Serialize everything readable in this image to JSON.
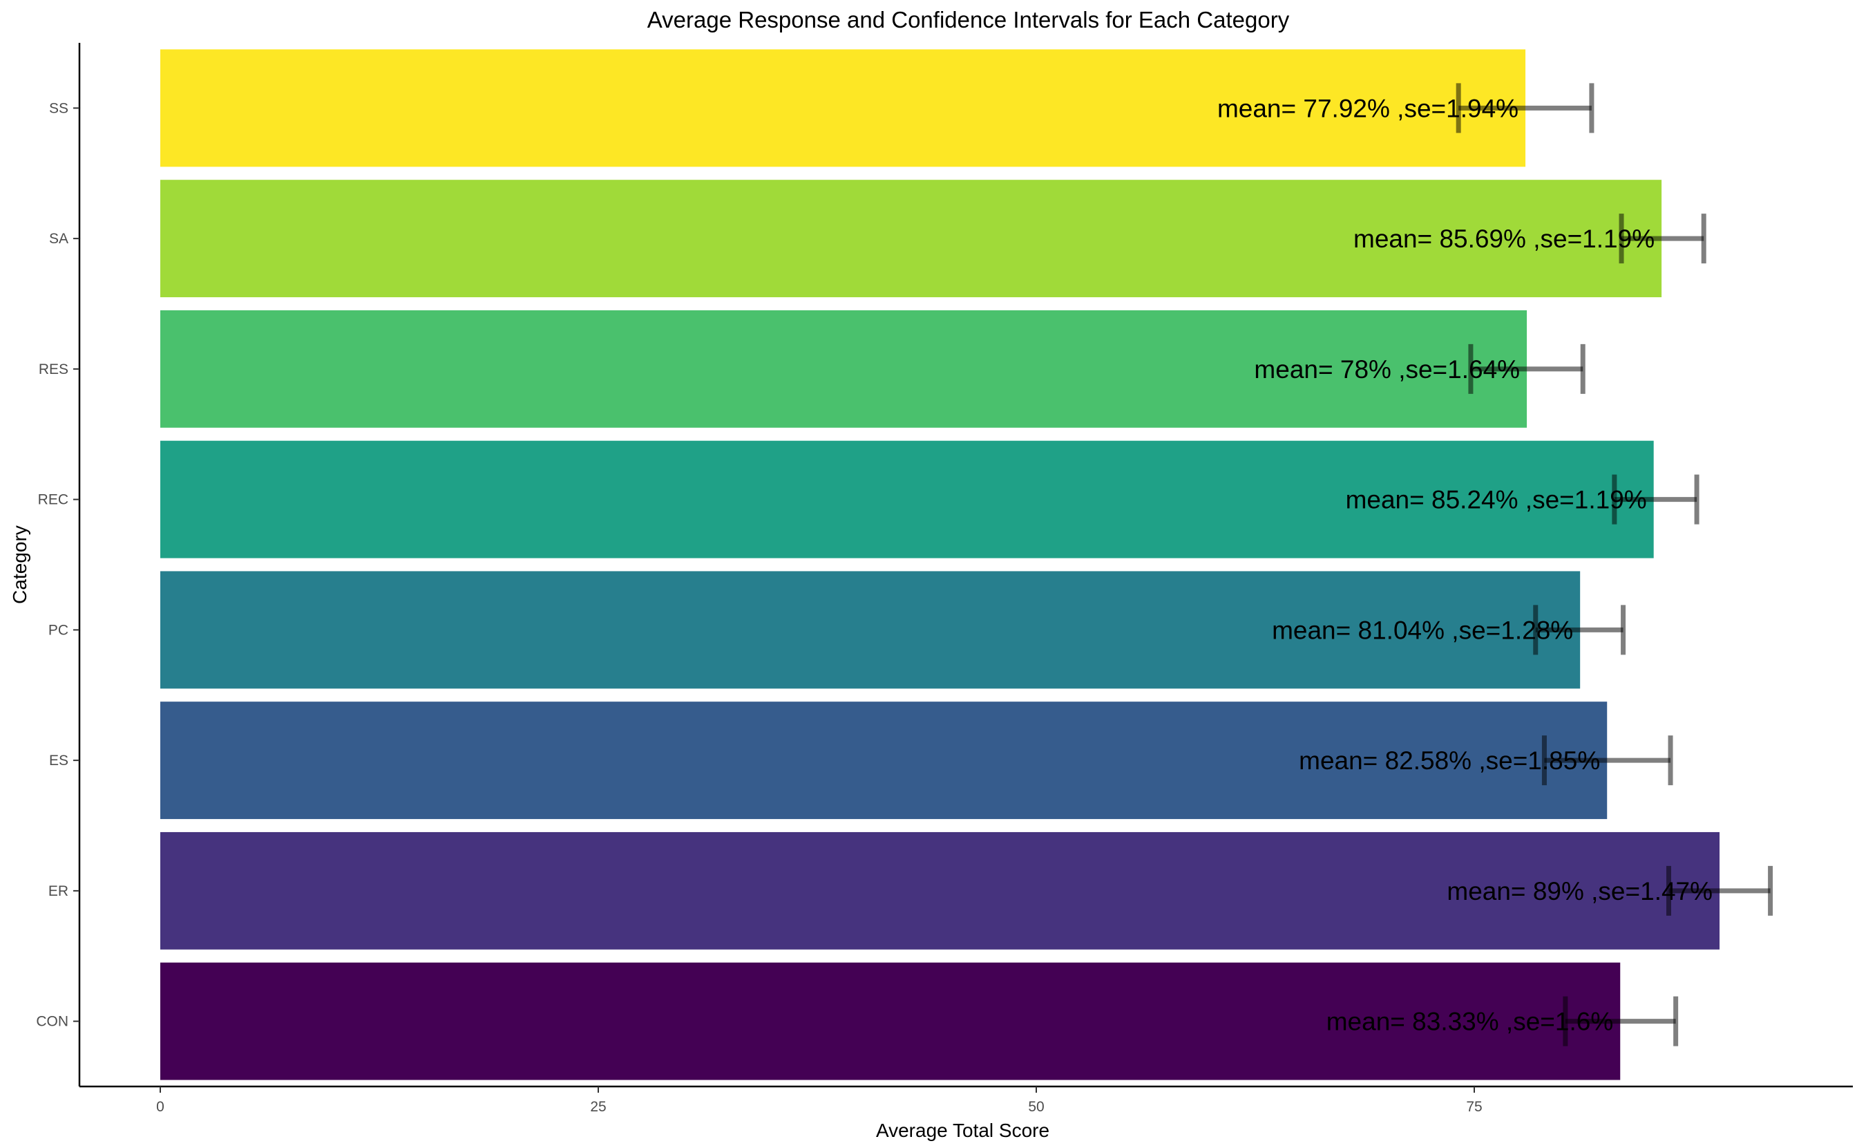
{
  "chart_data": {
    "type": "bar",
    "orientation": "horizontal",
    "title": "Average Response and Confidence Intervals for Each Category",
    "xlabel": "Average Total Score",
    "ylabel": "Category",
    "xlim": [
      -4.6,
      96.6
    ],
    "xticks": [
      0,
      25,
      50,
      75
    ],
    "grid": false,
    "legend": "none",
    "categories": [
      "CON",
      "ER",
      "ES",
      "PC",
      "REC",
      "RES",
      "SA",
      "SS"
    ],
    "values": [
      83.33,
      89,
      82.58,
      81.04,
      85.24,
      78,
      85.69,
      77.92
    ],
    "error_low": [
      80.2,
      86.1,
      79,
      78.5,
      83,
      74.8,
      83.4,
      74.1
    ],
    "error_high": [
      86.5,
      91.9,
      86.2,
      83.5,
      87.7,
      81.2,
      88.1,
      81.7
    ],
    "labels": [
      "mean= 83.33% ,se=1.6%",
      "mean= 89% ,se=1.47%",
      "mean= 82.58% ,se=1.85%",
      "mean= 81.04% ,se=1.28%",
      "mean= 85.24% ,se=1.19%",
      "mean= 78% ,se=1.64%",
      "mean= 85.69% ,se=1.19%",
      "mean= 77.92% ,se=1.94%"
    ],
    "colors": [
      "#440154",
      "#46337e",
      "#365c8d",
      "#277f8e",
      "#1fa187",
      "#4ac16d",
      "#a0da39",
      "#fde725"
    ]
  }
}
